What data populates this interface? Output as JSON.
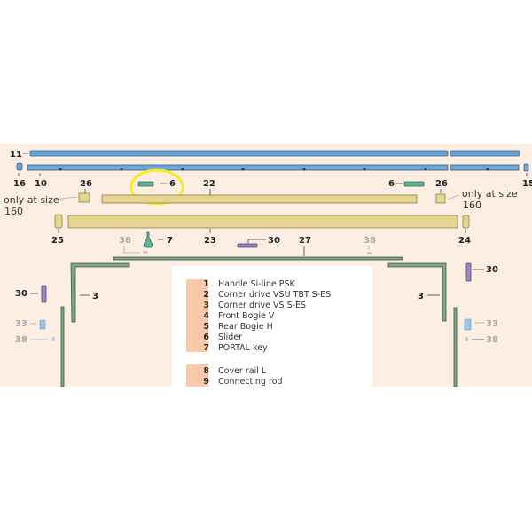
{
  "colors": {
    "background": "#fdeee4",
    "rail_blue": "#6aa7d8",
    "rail_khaki": "#e6d591",
    "rod_green": "#7fa48a",
    "highlight": "#f4ee1f",
    "legend_stripe": "#f9c9a9"
  },
  "labels": {
    "p11": "11",
    "p16": "16",
    "p10": "10",
    "p15": "15",
    "p26_left": "26",
    "p26_right": "26",
    "p6_left": "6",
    "p6_right": "6",
    "p22": "22",
    "p25": "25",
    "p23": "23",
    "p24": "24",
    "p38_a": "38",
    "p7": "7",
    "p30_top": "30",
    "p27": "27",
    "p38_b": "38",
    "p30_left": "30",
    "p3_left": "3",
    "p33_left": "33",
    "p38_left": "38",
    "p30_right": "30",
    "p3_right": "3",
    "p33_right": "33",
    "p38_right": "38"
  },
  "notes": {
    "left_line1": "only at size",
    "left_line2": "160",
    "right_line1": "only at size",
    "right_line2": "160"
  },
  "legend": {
    "group1": [
      {
        "num": "1",
        "name": "Handle Si-line PSK"
      },
      {
        "num": "2",
        "name": "Corner drive VSU TBT S-ES"
      },
      {
        "num": "3",
        "name": "Corner drive VS S-ES"
      },
      {
        "num": "4",
        "name": "Front Bogie V"
      },
      {
        "num": "5",
        "name": "Rear Bogie H"
      },
      {
        "num": "6",
        "name": "Slider"
      },
      {
        "num": "7",
        "name": "PORTAL key"
      }
    ],
    "group2": [
      {
        "num": "8",
        "name": "Cover rail L"
      },
      {
        "num": "9",
        "name": "Connecting rod"
      }
    ]
  },
  "highlighted_part": "6"
}
